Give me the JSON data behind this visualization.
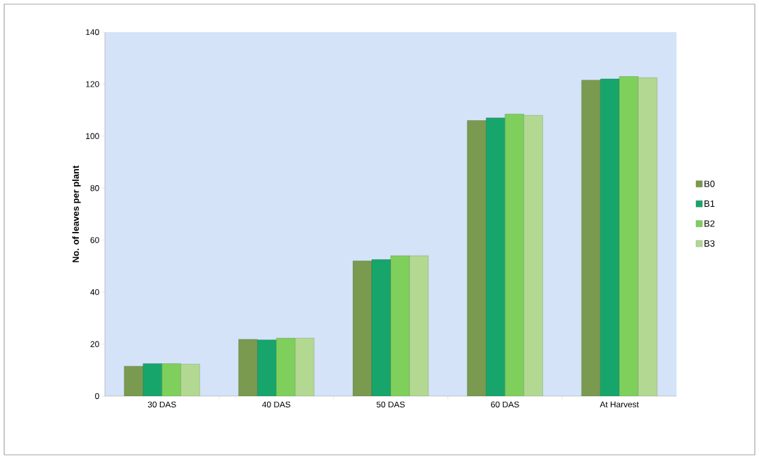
{
  "chart_data": {
    "type": "bar",
    "ylabel": "No. of leaves per plant",
    "categories": [
      "30 DAS",
      "40 DAS",
      "50 DAS",
      "60 DAS",
      "At Harvest"
    ],
    "series": [
      {
        "name": "B0",
        "color": "#7a9a50",
        "values": [
          11.5,
          21.8,
          52,
          106,
          121.5
        ]
      },
      {
        "name": "B1",
        "color": "#17a56c",
        "values": [
          12.5,
          21.6,
          52.5,
          107,
          122
        ]
      },
      {
        "name": "B2",
        "color": "#7fcf5c",
        "values": [
          12.5,
          22.3,
          54,
          108.5,
          123
        ]
      },
      {
        "name": "B3",
        "color": "#b2d892",
        "values": [
          12.3,
          22.3,
          54,
          108,
          122.5
        ]
      }
    ],
    "ylim": [
      0,
      140
    ],
    "yticks": [
      0,
      20,
      40,
      60,
      80,
      100,
      120,
      140
    ],
    "legend": "right"
  }
}
